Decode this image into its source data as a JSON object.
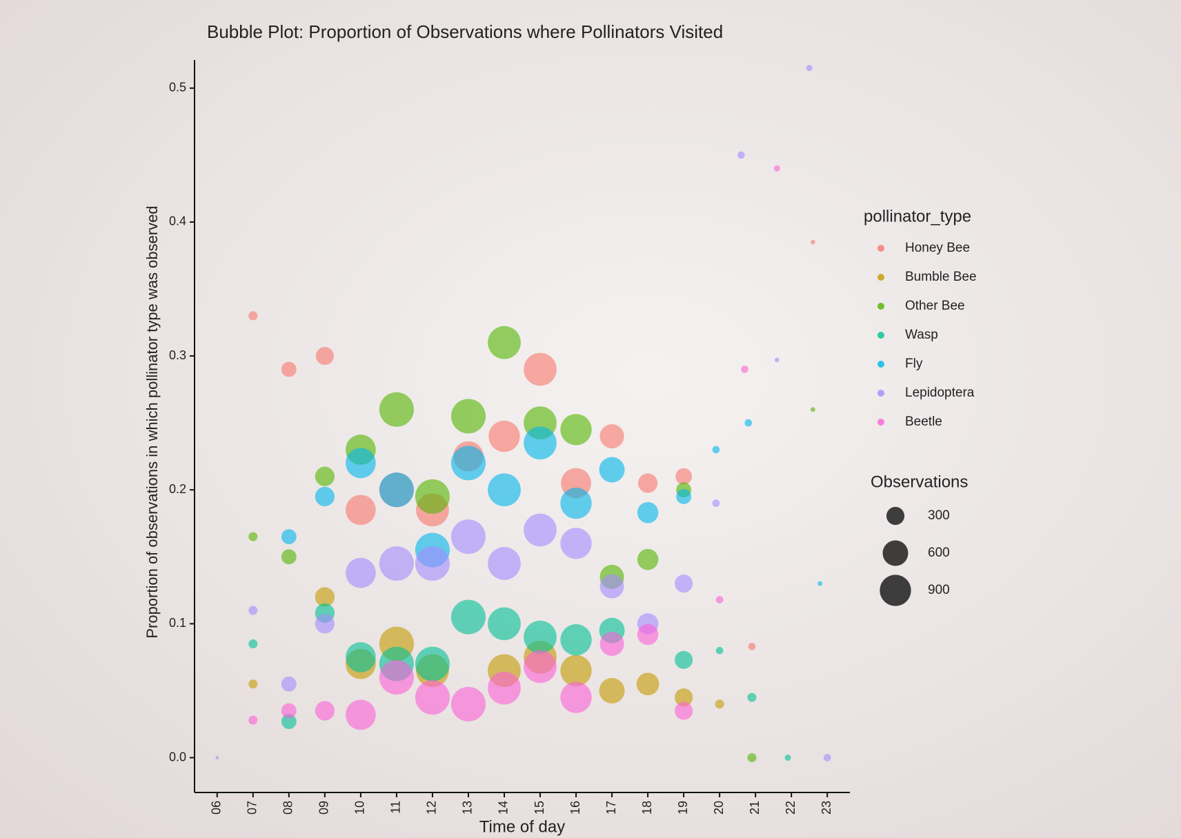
{
  "chart_data": {
    "type": "scatter",
    "title": "Bubble Plot: Proportion of Observations where Pollinators Visited",
    "x_label": "Time of day",
    "y_label": "Proportion of observations in which pollinator type was observed",
    "xlim": [
      5.37,
      23.63
    ],
    "xticks": [
      {
        "value": 6,
        "label": "06"
      },
      {
        "value": 7,
        "label": "07"
      },
      {
        "value": 8,
        "label": "08"
      },
      {
        "value": 9,
        "label": "09"
      },
      10,
      11,
      12,
      13,
      14,
      15,
      16,
      17,
      18,
      19,
      20,
      21,
      22,
      23
    ],
    "ylim": [
      -0.026,
      0.521
    ],
    "yticks": [
      {
        "value": 0,
        "label": "0.0"
      },
      0.1,
      0.2,
      0.3,
      0.4,
      0.5
    ],
    "legend_title": "pollinator_type",
    "size_legend": {
      "title": "Observations",
      "values": [
        300,
        600,
        900
      ]
    },
    "series": [
      {
        "name": "Honey Bee",
        "color": "#F8766D",
        "x": [
          7,
          8,
          9,
          10,
          11,
          12,
          13,
          14,
          15,
          16,
          17,
          18,
          19,
          20.9,
          22.6
        ],
        "values": [
          0.33,
          0.29,
          0.3,
          0.185,
          0.2,
          0.185,
          0.225,
          0.24,
          0.29,
          0.205,
          0.24,
          0.205,
          0.21,
          0.083,
          0.385
        ],
        "sizes": [
          75,
          210,
          300,
          840,
          1100,
          1000,
          840,
          900,
          1000,
          840,
          540,
          350,
          250,
          50,
          20
        ]
      },
      {
        "name": "Bumble Bee",
        "color": "#C49A00",
        "x": [
          7,
          9,
          10,
          11,
          12,
          14,
          15,
          16,
          17,
          18,
          19,
          20
        ],
        "values": [
          0.055,
          0.12,
          0.07,
          0.085,
          0.065,
          0.065,
          0.075,
          0.065,
          0.05,
          0.055,
          0.045,
          0.04
        ],
        "sizes": [
          75,
          350,
          840,
          1100,
          1000,
          1000,
          1000,
          900,
          600,
          470,
          300,
          75
        ]
      },
      {
        "name": "Other Bee",
        "color": "#53B400",
        "x": [
          7,
          8,
          9,
          10,
          11,
          12,
          13,
          14,
          15,
          16,
          17,
          18,
          19,
          20.9,
          22.6
        ],
        "values": [
          0.165,
          0.15,
          0.21,
          0.23,
          0.26,
          0.195,
          0.255,
          0.31,
          0.25,
          0.245,
          0.135,
          0.148,
          0.2,
          0.0,
          0.26
        ],
        "sizes": [
          75,
          210,
          350,
          840,
          1100,
          1100,
          1100,
          1000,
          1000,
          900,
          540,
          410,
          210,
          75,
          20
        ]
      },
      {
        "name": "Wasp",
        "color": "#00C094",
        "x": [
          7,
          8,
          9,
          10,
          11,
          12,
          13,
          14,
          15,
          16,
          17,
          19,
          20,
          20.9,
          21.9
        ],
        "values": [
          0.085,
          0.027,
          0.108,
          0.075,
          0.07,
          0.07,
          0.105,
          0.1,
          0.09,
          0.088,
          0.095,
          0.073,
          0.08,
          0.045,
          0.0
        ],
        "sizes": [
          75,
          210,
          350,
          840,
          1100,
          1100,
          1100,
          1000,
          1000,
          900,
          600,
          300,
          50,
          75,
          35
        ]
      },
      {
        "name": "Fly",
        "color": "#00B6EB",
        "x": [
          8,
          9,
          10,
          11,
          12,
          13,
          14,
          15,
          16,
          17,
          18,
          19,
          19.9,
          20.8,
          22.8
        ],
        "values": [
          0.165,
          0.195,
          0.22,
          0.2,
          0.155,
          0.22,
          0.2,
          0.235,
          0.19,
          0.215,
          0.183,
          0.195,
          0.23,
          0.25,
          0.13
        ],
        "sizes": [
          210,
          350,
          840,
          1100,
          1100,
          1100,
          1000,
          1000,
          900,
          600,
          410,
          210,
          50,
          50,
          20
        ]
      },
      {
        "name": "Lepidoptera",
        "color": "#A58AFF",
        "x": [
          6,
          7,
          8,
          9,
          10,
          11,
          12,
          13,
          14,
          15,
          16,
          17,
          18,
          19,
          19.9,
          20.6,
          21.6,
          22.5,
          23
        ],
        "values": [
          0.0,
          0.11,
          0.055,
          0.1,
          0.138,
          0.145,
          0.145,
          0.165,
          0.145,
          0.17,
          0.16,
          0.128,
          0.1,
          0.13,
          0.19,
          0.45,
          0.297,
          0.515,
          0.0
        ],
        "sizes": [
          10,
          75,
          210,
          350,
          840,
          1100,
          1100,
          1100,
          1000,
          1000,
          900,
          540,
          410,
          300,
          50,
          50,
          20,
          35,
          50
        ]
      },
      {
        "name": "Beetle",
        "color": "#FB61D7",
        "x": [
          7,
          8,
          9,
          10,
          11,
          12,
          13,
          14,
          15,
          16,
          17,
          18,
          19,
          20,
          20.7,
          21.6
        ],
        "values": [
          0.028,
          0.035,
          0.035,
          0.032,
          0.06,
          0.045,
          0.04,
          0.052,
          0.068,
          0.045,
          0.085,
          0.092,
          0.035,
          0.118,
          0.29,
          0.44
        ],
        "sizes": [
          75,
          210,
          350,
          840,
          1100,
          1100,
          1100,
          1000,
          1000,
          900,
          540,
          410,
          300,
          50,
          50,
          35
        ]
      }
    ]
  }
}
